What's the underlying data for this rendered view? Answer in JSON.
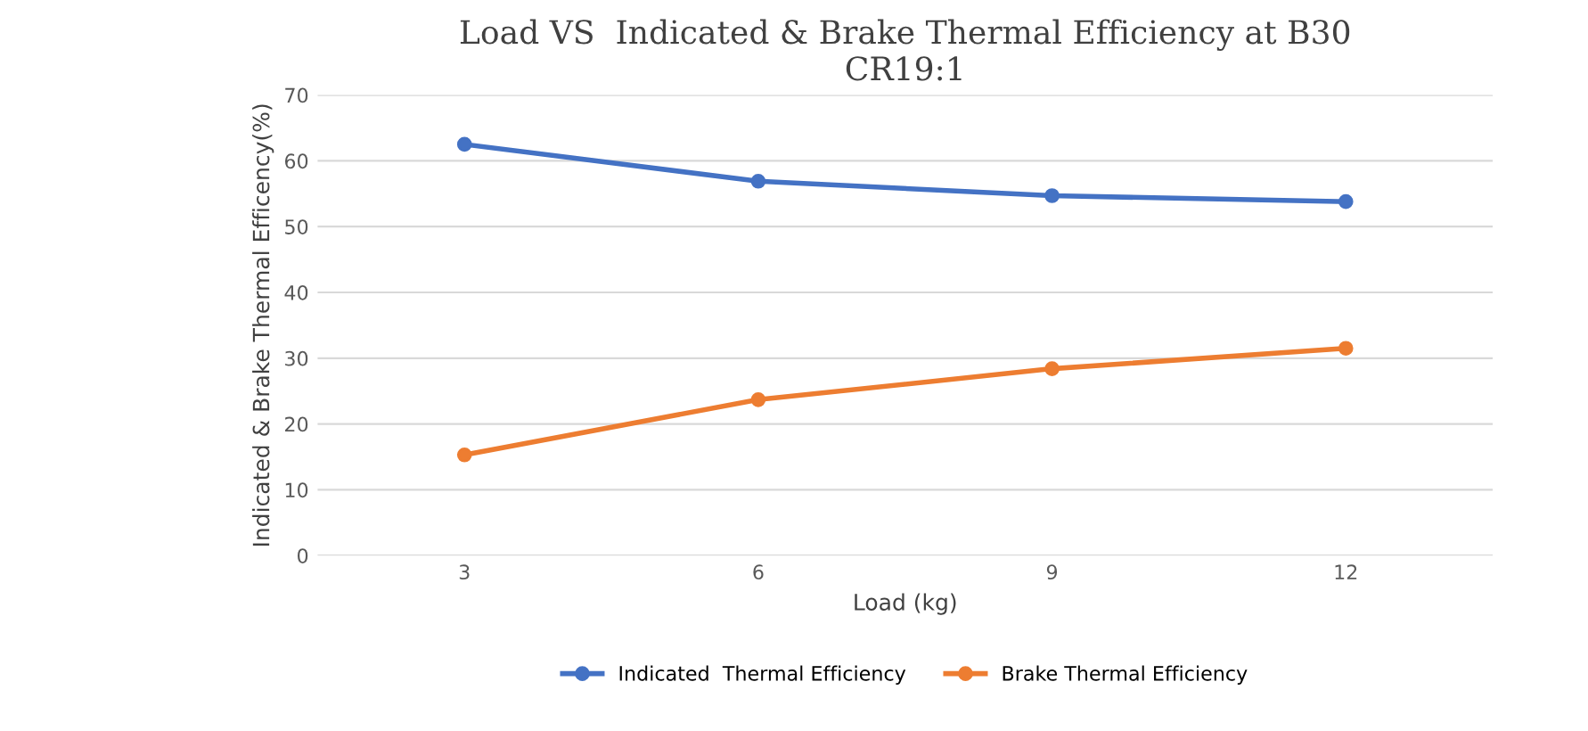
{
  "chart_data": {
    "type": "line",
    "title": "Load VS  Indicated & Brake Thermal Efficiency at B30\nCR19:1",
    "xlabel": "Load (kg)",
    "ylabel": "Indicated & Brake Thermal Efficency(%)",
    "categories": [
      "3",
      "6",
      "9",
      "12"
    ],
    "series": [
      {
        "name": "Indicated  Thermal Efficiency",
        "color": "#4472c4",
        "values": [
          62.5,
          56.9,
          54.7,
          53.8
        ]
      },
      {
        "name": "Brake Thermal Efficiency",
        "color": "#ed7d31",
        "values": [
          15.3,
          23.7,
          28.4,
          31.5
        ]
      }
    ],
    "ylim": [
      0,
      70
    ],
    "yticks": [
      0,
      10,
      20,
      30,
      40,
      50,
      60,
      70
    ],
    "grid": "y",
    "legend": "bottom",
    "marker": "circle",
    "line_style": "solid"
  }
}
